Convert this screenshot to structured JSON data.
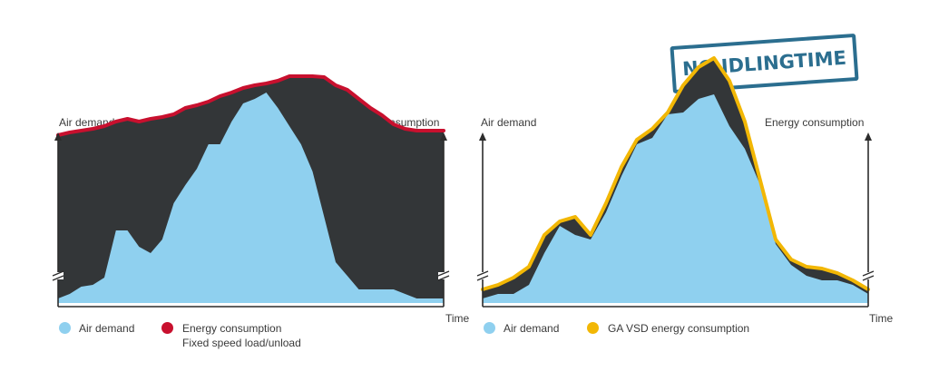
{
  "stamp": {
    "text": "NO IDLINGTIME",
    "color": "#2b6e8f"
  },
  "colors": {
    "air_demand": "#8fd0ef",
    "fill_dark": "#333638",
    "fixed_line": "#c8102e",
    "vsd_line": "#f2b705",
    "axis": "#2c2c2c"
  },
  "chart_data": [
    {
      "type": "area",
      "title": "Fixed speed load/unload",
      "ylabel_left": "Air demand",
      "ylabel_right": "Energy consumption",
      "xlabel": "Time",
      "x": [
        0,
        3,
        6,
        9,
        12,
        15,
        18,
        21,
        24,
        27,
        30,
        33,
        36,
        39,
        42,
        45,
        48,
        51,
        54,
        57,
        60,
        63,
        66,
        69,
        72,
        75,
        78,
        81,
        84,
        87,
        90,
        93,
        96,
        100
      ],
      "series": [
        {
          "name": "Air demand",
          "values": [
            5,
            10,
            18,
            20,
            28,
            80,
            80,
            62,
            55,
            70,
            110,
            130,
            148,
            175,
            175,
            200,
            220,
            225,
            232,
            215,
            195,
            175,
            145,
            95,
            45,
            30,
            15,
            15,
            15,
            15,
            10,
            5,
            5,
            5
          ]
        },
        {
          "name": "Energy consumption",
          "values": [
            185,
            188,
            190,
            192,
            195,
            200,
            203,
            200,
            203,
            205,
            208,
            215,
            218,
            222,
            228,
            232,
            237,
            240,
            242,
            245,
            250,
            250,
            250,
            249,
            240,
            235,
            225,
            215,
            207,
            197,
            192,
            190,
            190,
            190
          ]
        }
      ],
      "legend": [
        {
          "label": "Air demand"
        },
        {
          "label": "Energy consumption",
          "sublabel": "Fixed speed  load/unload"
        }
      ]
    },
    {
      "type": "area",
      "title": "GA VSD energy consumption",
      "ylabel_left": "Air demand",
      "ylabel_right": "Energy consumption",
      "xlabel": "Time",
      "x": [
        0,
        4,
        8,
        12,
        16,
        20,
        24,
        28,
        32,
        36,
        40,
        44,
        48,
        52,
        56,
        60,
        64,
        68,
        72,
        76,
        80,
        84,
        88,
        92,
        96,
        100
      ],
      "series": [
        {
          "name": "Air demand",
          "values": [
            5,
            10,
            10,
            20,
            55,
            85,
            75,
            70,
            100,
            140,
            175,
            182,
            208,
            210,
            225,
            230,
            195,
            170,
            130,
            65,
            42,
            30,
            25,
            25,
            20,
            10
          ]
        },
        {
          "name": "GA VSD energy consumption",
          "values": [
            15,
            20,
            28,
            40,
            75,
            90,
            95,
            75,
            110,
            150,
            180,
            192,
            210,
            240,
            260,
            270,
            245,
            200,
            135,
            70,
            48,
            40,
            38,
            33,
            25,
            15
          ]
        }
      ],
      "legend": [
        {
          "label": "Air demand"
        },
        {
          "label": "GA VSD energy consumption"
        }
      ]
    }
  ],
  "labels": {
    "left_air": "Air demand",
    "left_energy": "Energy consumption",
    "left_time": "Time",
    "right_air": "Air demand",
    "right_energy": "Energy consumption",
    "right_time": "Time",
    "legend_left_air": "Air demand",
    "legend_left_energy": "Energy consumption",
    "legend_left_sub": "Fixed speed  load/unload",
    "legend_right_air": "Air demand",
    "legend_right_energy": "GA VSD energy consumption"
  }
}
